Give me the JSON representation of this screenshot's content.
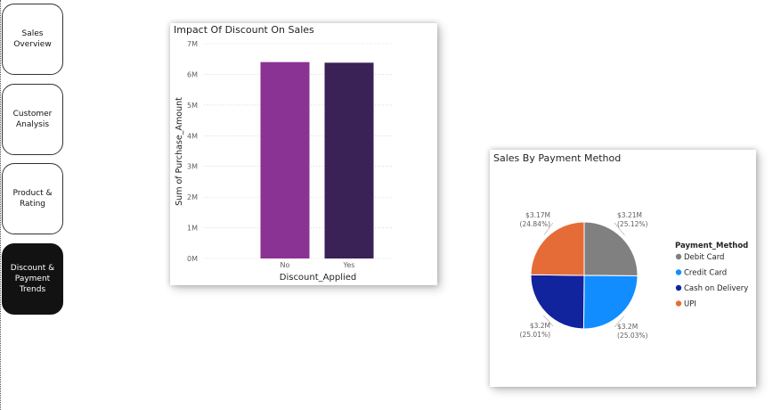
{
  "nav": [
    {
      "label": "Sales Overview",
      "active": false
    },
    {
      "label": "Customer Analysis",
      "active": false
    },
    {
      "label": "Product & Rating",
      "active": false
    },
    {
      "label": "Discount & Payment Trends",
      "active": true
    }
  ],
  "bar_visual": {
    "title": "Impact Of Discount On Sales"
  },
  "pie_visual": {
    "title": "Sales By Payment Method"
  },
  "chart_data": [
    {
      "type": "bar",
      "title": "Impact Of Discount On Sales",
      "xlabel": "Discount_Applied",
      "ylabel": "Sum of Purchase_Amount",
      "categories": [
        "No",
        "Yes"
      ],
      "values": [
        6400000,
        6380000
      ],
      "colors": [
        "#8b3394",
        "#3a2156"
      ],
      "ylim": [
        0,
        7000000
      ],
      "yticks": [
        0,
        1000000,
        2000000,
        3000000,
        4000000,
        5000000,
        6000000,
        7000000
      ],
      "ytick_labels": [
        "0M",
        "1M",
        "2M",
        "3M",
        "4M",
        "5M",
        "6M",
        "7M"
      ],
      "grid": true
    },
    {
      "type": "pie",
      "title": "Sales By Payment Method",
      "legend_title": "Payment_Method",
      "legend_position": "right",
      "slices": [
        {
          "name": "Debit Card",
          "value": 3.21,
          "label": "$3.21M",
          "pct": "(25.12%)",
          "color": "#808080"
        },
        {
          "name": "Credit Card",
          "value": 3.2,
          "label": "$3.2M",
          "pct": "(25.03%)",
          "color": "#118dff"
        },
        {
          "name": "Cash on Delivery",
          "value": 3.2,
          "label": "$3.2M",
          "pct": "(25.01%)",
          "color": "#12239e"
        },
        {
          "name": "UPI",
          "value": 3.17,
          "label": "$3.17M",
          "pct": "(24.84%)",
          "color": "#e66c37"
        }
      ]
    }
  ]
}
